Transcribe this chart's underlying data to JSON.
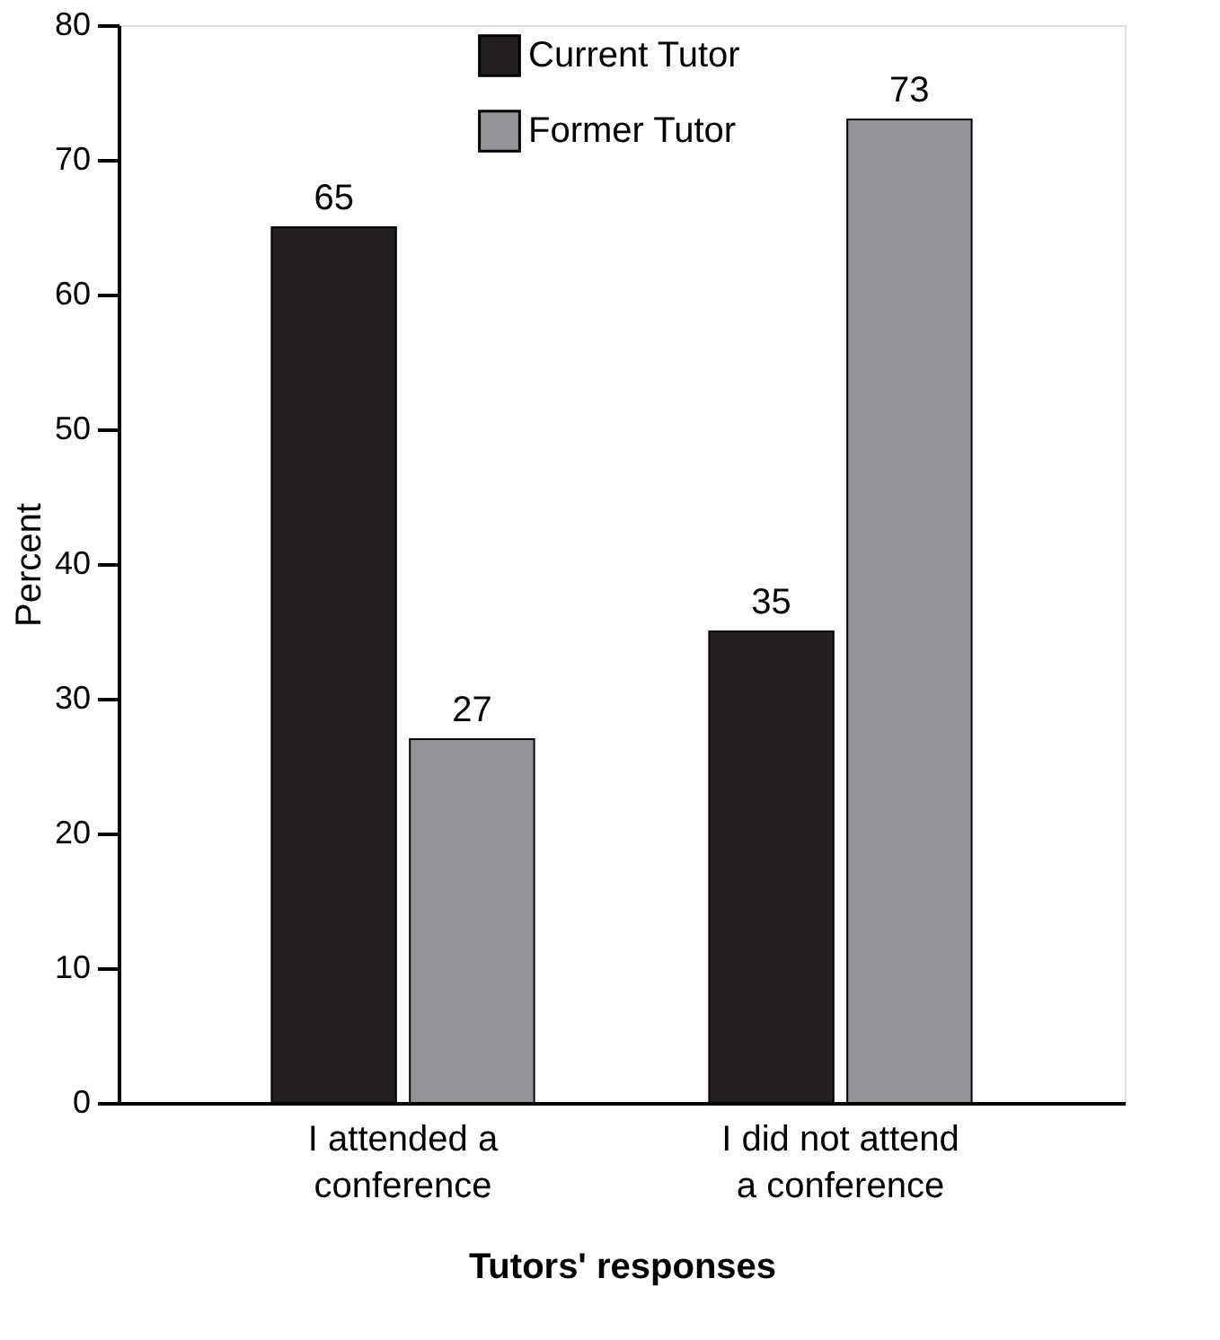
{
  "chart_data": {
    "type": "bar",
    "xlabel": "Tutors' responses",
    "ylabel": "Percent",
    "categories": [
      "I attended a conference",
      "I did not attend a conference"
    ],
    "series": [
      {
        "name": "Current Tutor",
        "color": "#231f20",
        "values": [
          65,
          35
        ]
      },
      {
        "name": "Former Tutor",
        "color": "#939598",
        "values": [
          27,
          73
        ]
      }
    ],
    "ylim": [
      0,
      80
    ],
    "yticks": [
      0,
      10,
      20,
      30,
      40,
      50,
      60,
      70,
      80
    ],
    "grid": false,
    "legend": "top right",
    "data_labels": true
  }
}
